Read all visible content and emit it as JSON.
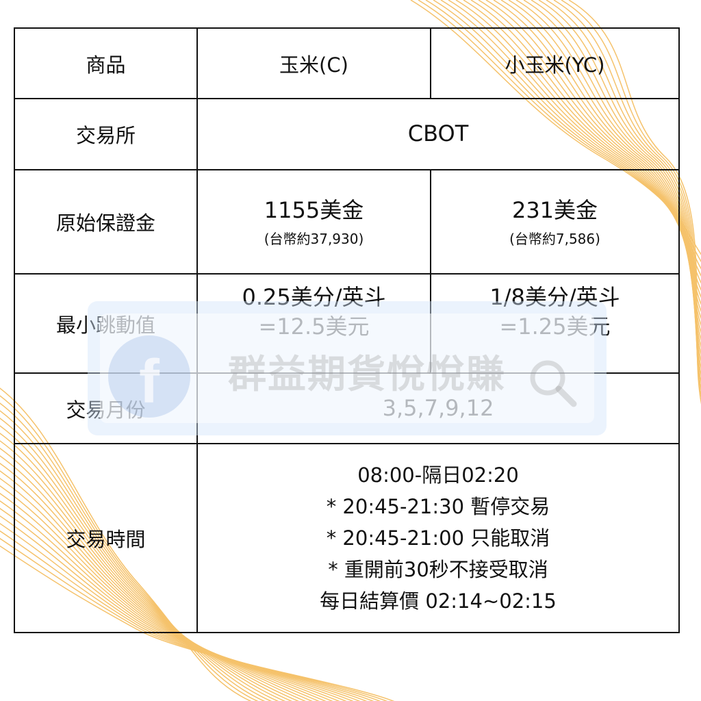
{
  "colors": {
    "wave": "#f5c26b",
    "border": "#111111",
    "watermark_bg": "#d2e4fa"
  },
  "table": {
    "header": {
      "label": "商品",
      "col1": "玉米(C)",
      "col2": "小玉米(YC)"
    },
    "exchange": {
      "label": "交易所",
      "value": "CBOT"
    },
    "margin": {
      "label": "原始保證金",
      "col1": "1155美金",
      "col1_sub": "(台幣約37,930)",
      "col2": "231美金",
      "col2_sub": "(台幣約7,586)"
    },
    "tick": {
      "label": "最小跳動值",
      "col1_line1": "0.25美分/英斗",
      "col1_line2": "=12.5美元",
      "col2_line1": "1/8美分/英斗",
      "col2_line2": "=1.25美元"
    },
    "months": {
      "label": "交易月份",
      "value": "3,5,7,9,12"
    },
    "hours": {
      "label": "交易時間",
      "lines": [
        "08:00-隔日02:20",
        "* 20:45-21:30 暫停交易",
        "* 20:45-21:00 只能取消",
        "* 重開前30秒不接受取消",
        "每日結算價 02:14~02:15"
      ]
    }
  },
  "watermark": {
    "text": "群益期貨悅悅賺",
    "icons": [
      "facebook-icon",
      "search-icon"
    ]
  }
}
